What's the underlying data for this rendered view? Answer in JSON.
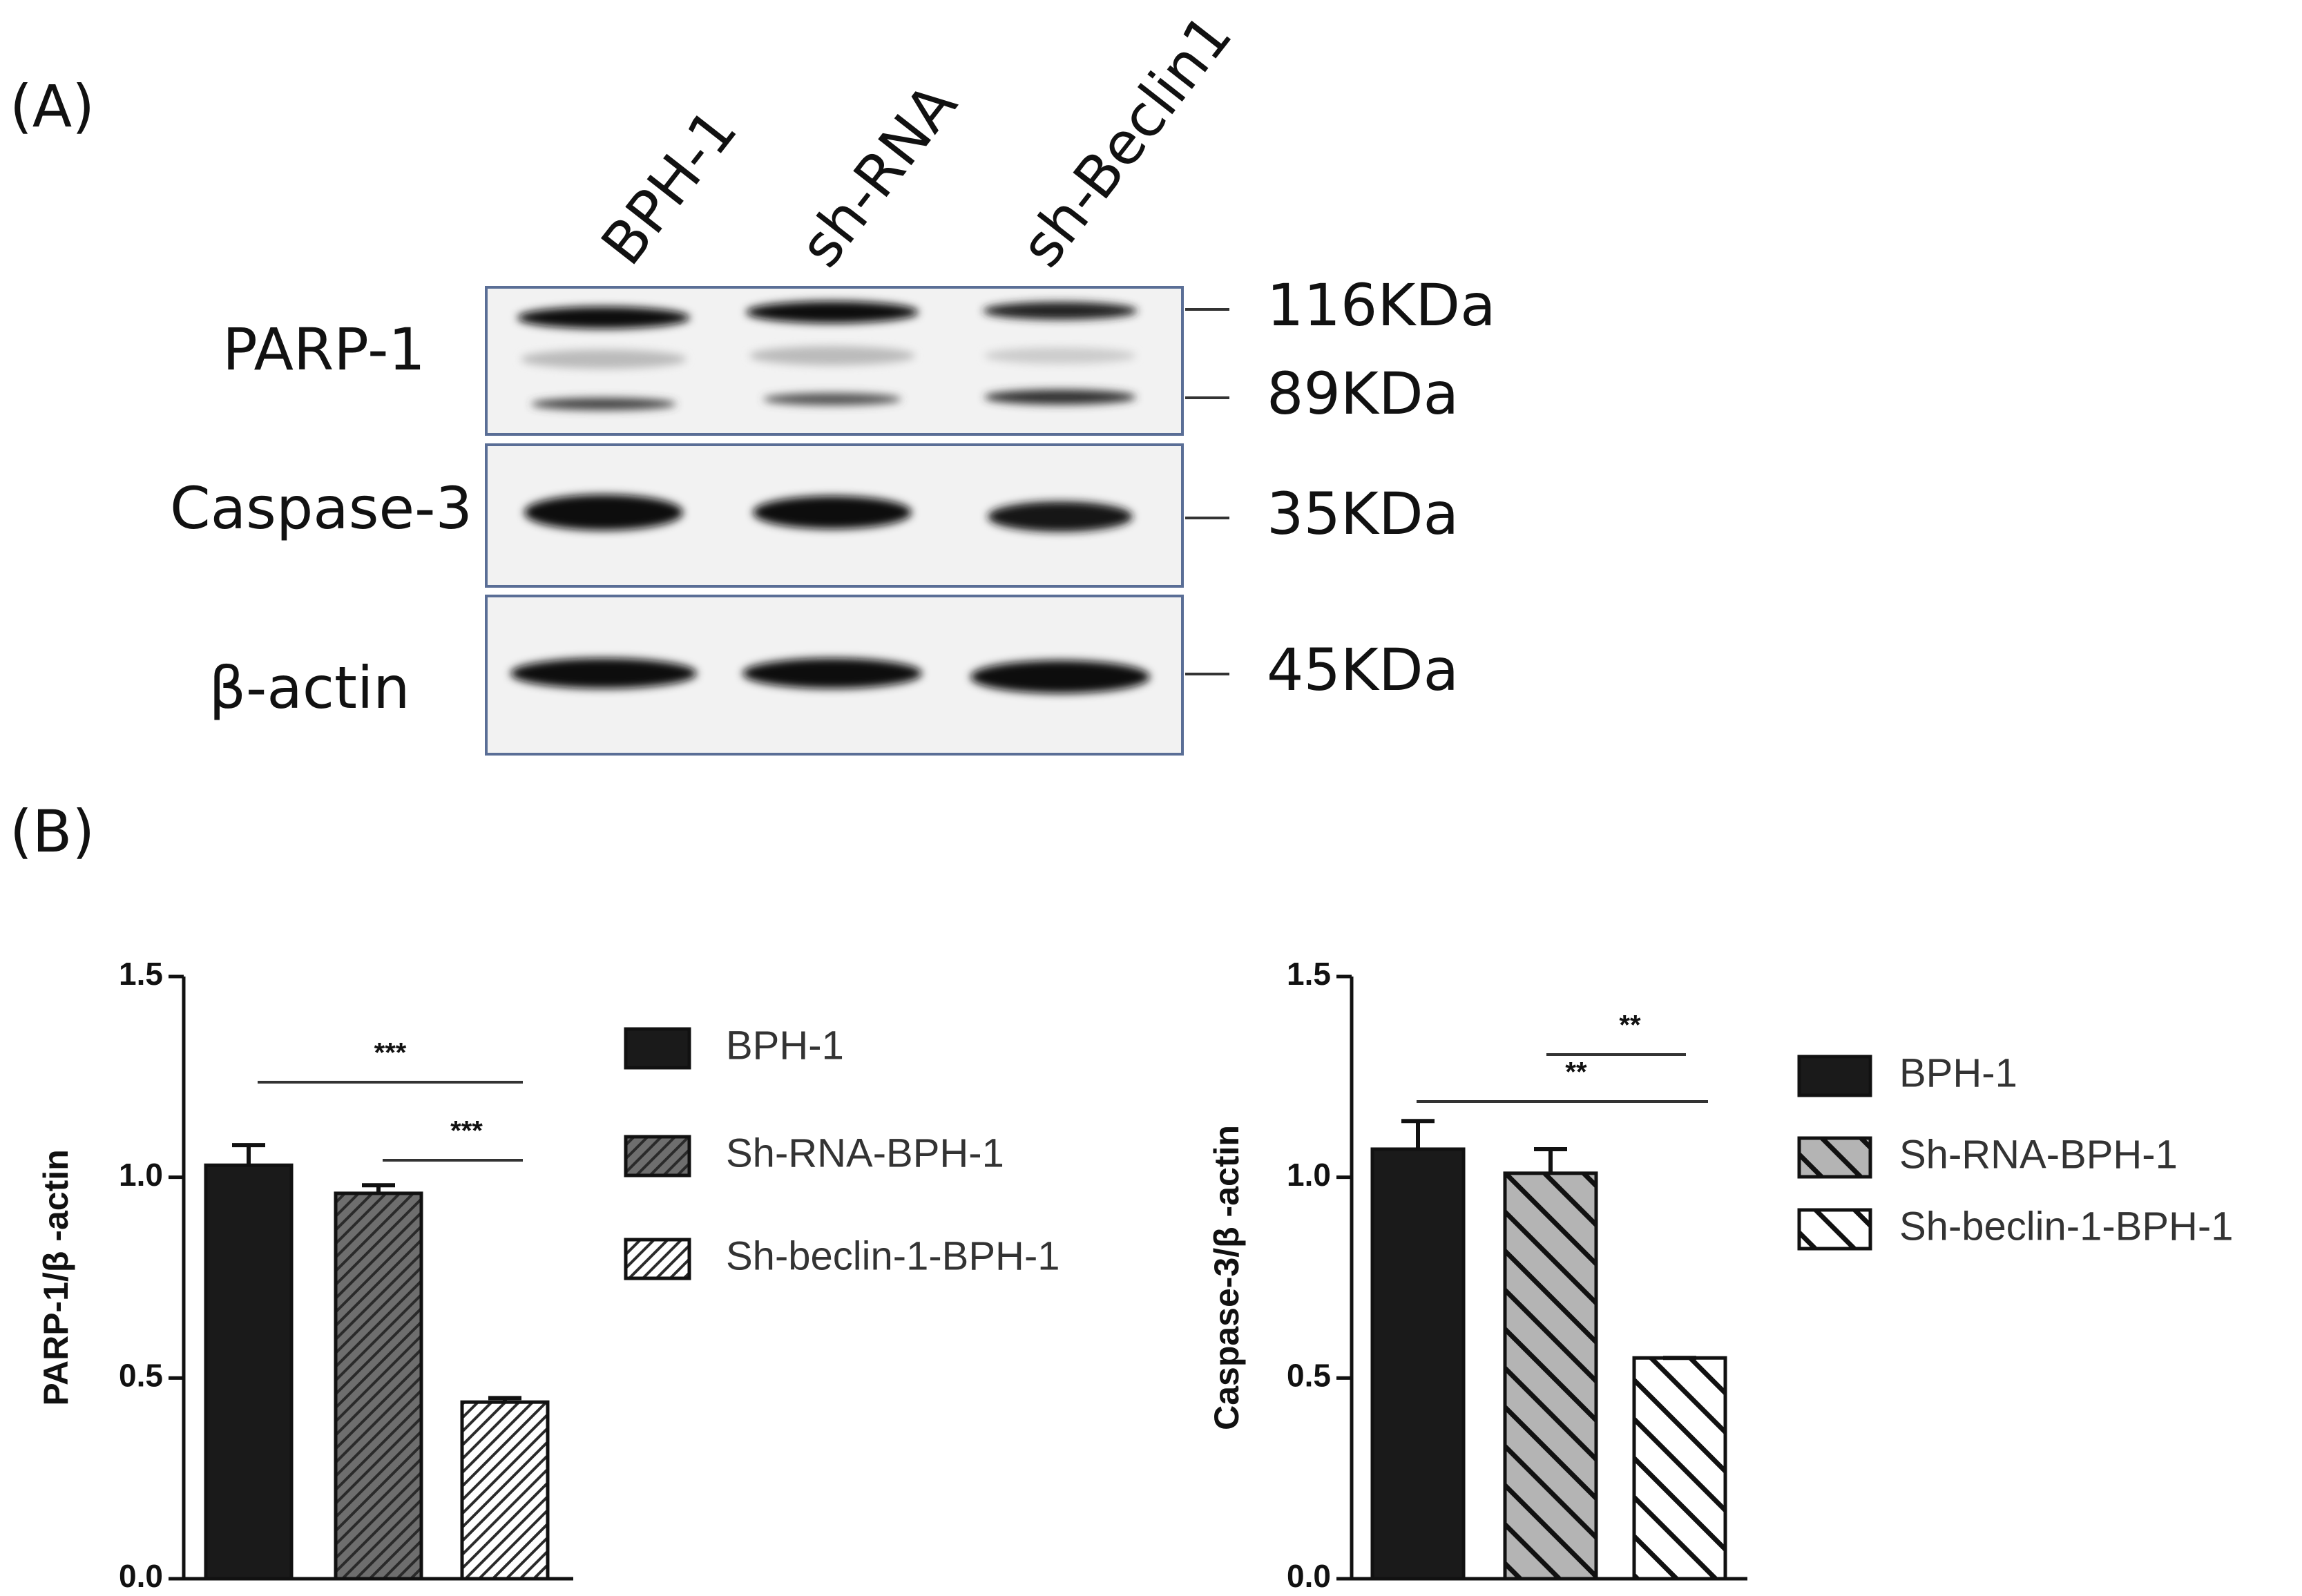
{
  "panels": {
    "a": "(A)",
    "b": "(B)"
  },
  "blot": {
    "lanes": [
      "BPH-1",
      "sh-RNA",
      "sh-Beclin1"
    ],
    "rows": [
      "PARP-1",
      "Caspase-3",
      "β-actin"
    ],
    "markers": [
      "116KDa",
      "89KDa",
      "35KDa",
      "45KDa"
    ]
  },
  "chart_data": [
    {
      "type": "bar",
      "ylabel": "PARP-1/β -actin",
      "categories": [
        null
      ],
      "series": [
        {
          "name": "BPH-1",
          "color": "#1a1a1a",
          "hatch": "none",
          "values": [
            1.03
          ],
          "errors": [
            0.05
          ]
        },
        {
          "name": "Sh-RNA-BPH-1",
          "color": "#6e6e6e",
          "hatch": "fine-forward",
          "values": [
            0.96
          ],
          "errors": [
            0.02
          ]
        },
        {
          "name": "Sh-beclin-1-BPH-1",
          "color": "#ffffff",
          "hatch": "fine-forward",
          "values": [
            0.44
          ],
          "errors": [
            0.01
          ]
        }
      ],
      "ylim": [
        0,
        1.5
      ],
      "yticks": [
        {
          "value": 0,
          "label": "0.0"
        },
        0.5,
        {
          "value": 1,
          "label": "1.0"
        },
        1.5
      ],
      "annotations": [
        "***",
        "***"
      ]
    },
    {
      "type": "bar",
      "ylabel": "Caspase-3/β -actin",
      "categories": [
        null
      ],
      "series": [
        {
          "name": "BPH-1",
          "color": "#1a1a1a",
          "hatch": "none",
          "values": [
            1.07
          ],
          "errors": [
            0.07
          ]
        },
        {
          "name": "Sh-RNA-BPH-1",
          "color": "#b4b4b4",
          "hatch": "wide-back",
          "values": [
            1.01
          ],
          "errors": [
            0.06
          ]
        },
        {
          "name": "Sh-beclin-1-BPH-1",
          "color": "#ffffff",
          "hatch": "wide-back",
          "values": [
            0.55
          ],
          "errors": [
            0
          ]
        }
      ],
      "ylim": [
        0,
        1.5
      ],
      "yticks": [
        {
          "value": 0,
          "label": "0.0"
        },
        0.5,
        {
          "value": 1,
          "label": "1.0"
        },
        1.5
      ],
      "annotations": [
        "**",
        "**"
      ]
    }
  ]
}
